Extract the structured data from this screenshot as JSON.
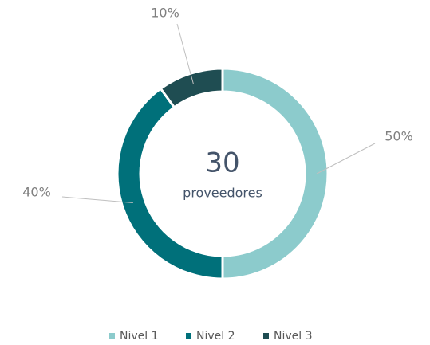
{
  "chart_data": {
    "type": "donut",
    "center_value": 30,
    "center_label": "proveedores",
    "categories": [
      "Nivel 1",
      "Nivel 2",
      "Nivel 3"
    ],
    "values": [
      50,
      40,
      10
    ],
    "value_labels": [
      "50%",
      "40%",
      "10%"
    ],
    "colors": [
      "#8ccbcc",
      "#00707a",
      "#1f4d52"
    ],
    "legend": "bottom"
  }
}
